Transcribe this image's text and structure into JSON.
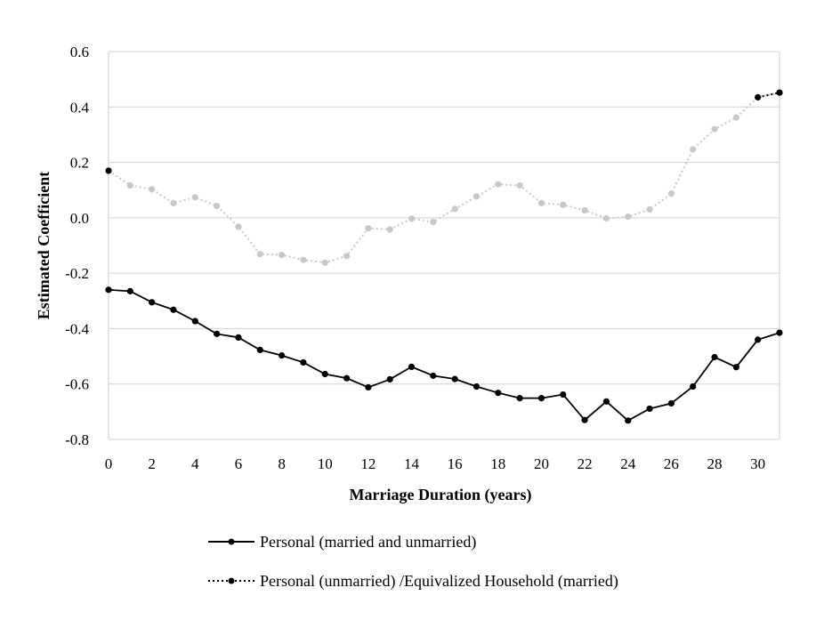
{
  "chart_data": {
    "type": "line",
    "xlabel": "Marriage Duration (years)",
    "ylabel": "Estimated Coefficient",
    "xlim": [
      0,
      31
    ],
    "ylim": [
      -0.8,
      0.6
    ],
    "xticks": [
      "0",
      "2",
      "4",
      "6",
      "8",
      "10",
      "12",
      "14",
      "16",
      "18",
      "20",
      "22",
      "24",
      "26",
      "28",
      "30"
    ],
    "yticks": [
      "0.6",
      "0.4",
      "0.2",
      "0.0",
      "-0.2",
      "-0.4",
      "-0.6",
      "-0.8"
    ],
    "grid": "horizontal",
    "legend_position": "bottom",
    "x": [
      0,
      1,
      2,
      3,
      4,
      5,
      6,
      7,
      8,
      9,
      10,
      11,
      12,
      13,
      14,
      15,
      16,
      17,
      18,
      19,
      20,
      21,
      22,
      23,
      24,
      25,
      26,
      27,
      28,
      29,
      30,
      31
    ],
    "series": [
      {
        "name": "Personal (married and unmarried)",
        "color": "#000000",
        "style": "solid",
        "values": [
          -0.26,
          -0.265,
          -0.305,
          -0.332,
          -0.373,
          -0.419,
          -0.432,
          -0.477,
          -0.497,
          -0.522,
          -0.564,
          -0.579,
          -0.612,
          -0.583,
          -0.538,
          -0.57,
          -0.582,
          -0.609,
          -0.632,
          -0.651,
          -0.651,
          -0.638,
          -0.73,
          -0.663,
          -0.732,
          -0.689,
          -0.67,
          -0.609,
          -0.503,
          -0.539,
          -0.44,
          -0.415
        ]
      },
      {
        "name": "Personal (unmarried) /Equivalized Household (married)",
        "color": "#c8c8c8",
        "style": "dotted",
        "values": [
          0.17,
          0.117,
          0.103,
          0.053,
          0.074,
          0.043,
          -0.032,
          -0.131,
          -0.134,
          -0.152,
          -0.162,
          -0.138,
          -0.038,
          -0.042,
          -0.003,
          -0.015,
          0.032,
          0.077,
          0.121,
          0.117,
          0.053,
          0.047,
          0.027,
          -0.002,
          0.004,
          0.03,
          0.087,
          0.247,
          0.32,
          0.362,
          0.435,
          0.452
        ]
      }
    ]
  }
}
